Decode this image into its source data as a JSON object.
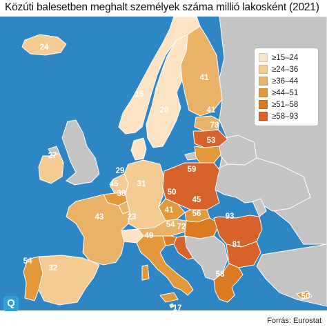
{
  "title": "Közúti balesetben meghalt személyek száma millió lakosként (2021)",
  "source": "Forrás: Eurostat",
  "logo": "Q",
  "colors": {
    "sea": "#2f86c4",
    "nodata": "#c4c4c4",
    "border": "#ffffff"
  },
  "legend": {
    "items": [
      {
        "label": "≥15–24",
        "color": "#fbe3c3"
      },
      {
        "label": "≥24–36",
        "color": "#f4cc93"
      },
      {
        "label": "≥36–44",
        "color": "#eab266"
      },
      {
        "label": "≥44–51",
        "color": "#e3993a"
      },
      {
        "label": "≥51–58",
        "color": "#dc7a22"
      },
      {
        "label": "≥58–93",
        "color": "#d7632a"
      }
    ]
  },
  "values": {
    "iceland": "24",
    "norway": "15",
    "sweden": "20",
    "finland": "41",
    "estonia": "41",
    "latvia": "78",
    "lithuania": "53",
    "ireland": "27",
    "uk": "",
    "netherlands": "29",
    "belgium": "45",
    "luxembourg": "38",
    "germany": "31",
    "denmark": "",
    "poland": "59",
    "czechia": "50",
    "slovakia": "45",
    "austria": "41",
    "hungary": "56",
    "slovenia": "54",
    "croatia": "72",
    "romania": "93",
    "bulgaria": "81",
    "greece": "58",
    "cyprus": "50",
    "italy": "49",
    "malta": "17",
    "france": "43",
    "spain": "32",
    "portugal": "54",
    "switzerland": "23"
  }
}
